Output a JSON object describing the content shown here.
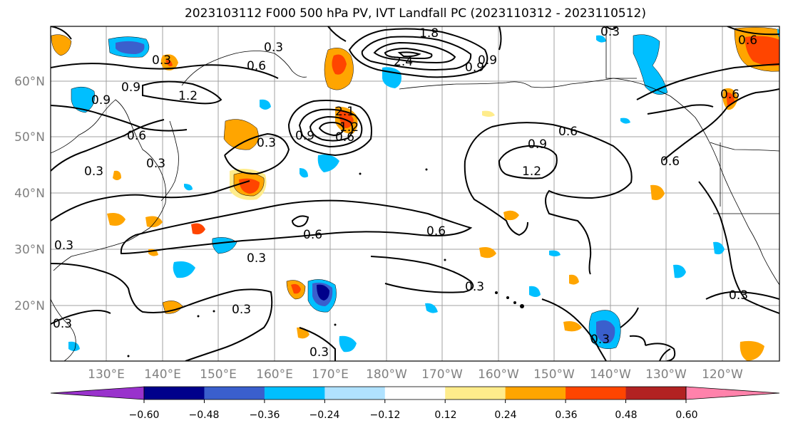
{
  "title": "2023103112 F000 500 hPa PV, IVT Landfall PC (2023110312 - 2023110512)",
  "lon_ticks": [
    "130°E",
    "140°E",
    "150°E",
    "160°E",
    "170°E",
    "180°W",
    "170°W",
    "160°W",
    "150°W",
    "140°W",
    "130°W",
    "120°W"
  ],
  "lat_ticks": [
    "60°N",
    "50°N",
    "40°N",
    "30°N",
    "20°N"
  ],
  "colorbar": {
    "colors": [
      "#9932cc",
      "#00008b",
      "#3a5fcd",
      "#00bfff",
      "#b0e2ff",
      "#ffffff",
      "#ffec8b",
      "#ffa500",
      "#ff4500",
      "#b22222",
      "#ff82ab"
    ],
    "labels": [
      "−0.60",
      "−0.48",
      "−0.36",
      "−0.24",
      "−0.12",
      "0.12",
      "0.24",
      "0.36",
      "0.48",
      "0.60"
    ]
  },
  "contour_labels": [
    "0.3",
    "0.6",
    "0.9",
    "1.2",
    "0.6",
    "0.9",
    "0.3",
    "0.3",
    "0.6",
    "0.3",
    "0.6",
    "0.3",
    "0.3",
    "0.3",
    "0.6",
    "0.9",
    "1.2",
    "0.6",
    "0.6",
    "0.6",
    "0.3",
    "0.3",
    "0.3",
    "0.3",
    "1.8",
    "2.4",
    "2.1",
    "0.9",
    "0.6",
    "0.9",
    "1.2",
    "0.3",
    "0.3",
    "0.3",
    "0.9"
  ]
}
